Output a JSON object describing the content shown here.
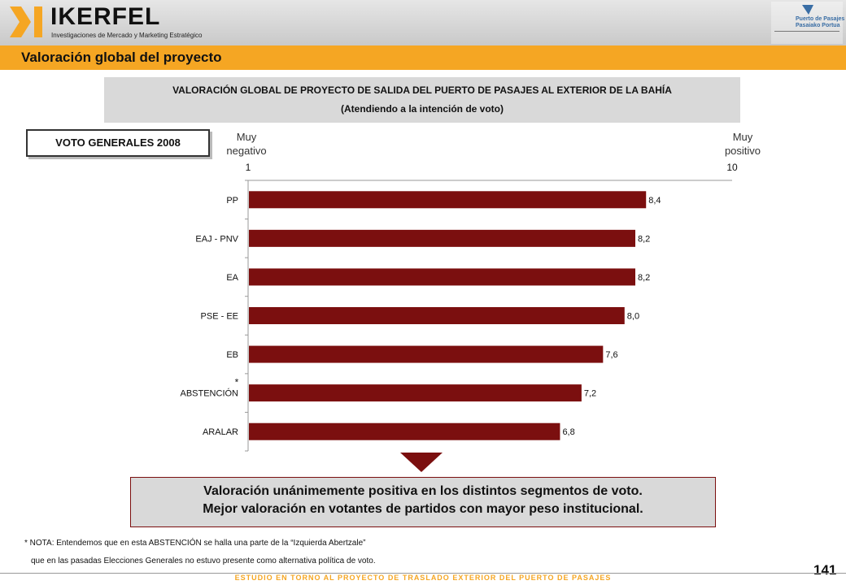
{
  "header": {
    "logo_text": "IKERFEL",
    "logo_sub": "Investigaciones de Mercado y Marketing Estratégico",
    "port_line1": "Puerto de Pasajes",
    "port_line2": "Pasaiako Portua"
  },
  "section_title": "Valoración global del proyecto",
  "subtitle": {
    "line1": "VALORACIÓN GLOBAL DE PROYECTO DE SALIDA DEL PUERTO DE PASAJES AL EXTERIOR DE LA BAHÍA",
    "line2": "(Atendiendo a la intención de voto)"
  },
  "segment_label": "VOTO GENERALES 2008",
  "scale_labels": {
    "min_text": "Muy negativo",
    "max_text": "Muy positivo"
  },
  "chart_data": {
    "type": "bar",
    "orientation": "horizontal",
    "xlim": [
      1,
      10
    ],
    "x_ticks": [
      "1",
      "10"
    ],
    "categories": [
      "PP",
      "EAJ - PNV",
      "EA",
      "PSE - EE",
      "EB",
      "ABSTENCIÓN",
      "ARALAR"
    ],
    "values": [
      8.4,
      8.2,
      8.2,
      8.0,
      7.6,
      7.2,
      6.8
    ],
    "value_labels": [
      "8,4",
      "8,2",
      "8,2",
      "8,0",
      "7,6",
      "7,2",
      "6,8"
    ],
    "bar_color": "#7b0f0f",
    "annotation": {
      "category": "ABSTENCIÓN",
      "text": "*"
    }
  },
  "conclusion": {
    "line1": "Valoración unánimemente positiva en los distintos segmentos de voto.",
    "line2": "Mejor valoración en votantes de partidos con mayor peso institucional."
  },
  "nota": {
    "line1": "* NOTA: Entendemos que en esta ABSTENCIÓN se halla una parte de la “Izquierda Abertzale”",
    "line2": "que en las pasadas Elecciones Generales no estuvo presente como alternativa política de voto."
  },
  "page_number": "141",
  "footer_text": "ESTUDIO EN TORNO AL PROYECTO DE TRASLADO EXTERIOR DEL PUERTO DE PASAJES"
}
